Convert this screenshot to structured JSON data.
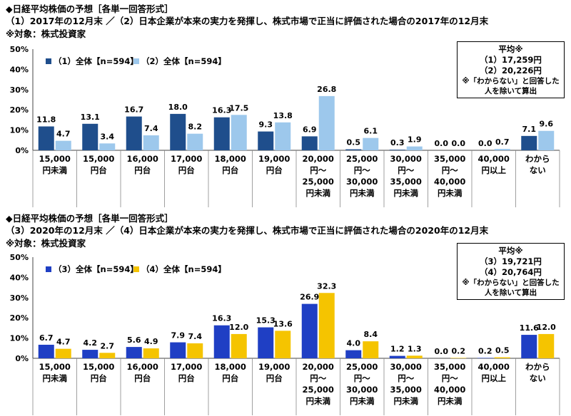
{
  "categories": [
    [
      "15,000",
      "円未満"
    ],
    [
      "15,000",
      "円台"
    ],
    [
      "16,000",
      "円台"
    ],
    [
      "17,000",
      "円台"
    ],
    [
      "18,000",
      "円台"
    ],
    [
      "19,000",
      "円台"
    ],
    [
      "20,000",
      "円～",
      "25,000",
      "円未満"
    ],
    [
      "25,000",
      "円～",
      "30,000",
      "円未満"
    ],
    [
      "30,000",
      "円～",
      "35,000",
      "円未満"
    ],
    [
      "35,000",
      "円～",
      "40,000",
      "円未満"
    ],
    [
      "40,000",
      "円以上"
    ],
    [
      "わから",
      "ない"
    ]
  ],
  "charts": [
    {
      "header": {
        "title": "◆日経平均株価の予想［各単一回答形式］",
        "line2": "（1）2017年の12月末 ／（2）日本企業が本来の実力を発揮し、株式市場で正当に評価された場合の2017年の12月末",
        "line3": "※対象：株式投資家"
      },
      "avg_box": {
        "title": "平均※",
        "line1": "（1）17,259円",
        "line2": "（2）20,226円",
        "note1": "※「わからない」と回答した",
        "note2": "人を除いて算出"
      }
    },
    {
      "header": {
        "title": "◆日経平均株価の予想［各単一回答形式］",
        "line2": "（3）2020年の12月末 ／（4）日本企業が本来の実力を発揮し、株式市場で正当に評価された場合の2020年の12月末",
        "line3": "※対象：株式投資家"
      },
      "avg_box": {
        "title": "平均※",
        "line1": "（3）19,721円",
        "line2": "（4）20,764円",
        "note1": "※「わからない」と回答した",
        "note2": "人を除いて算出"
      }
    }
  ],
  "chart_data": [
    {
      "type": "bar",
      "categories": [
        "15,000円未満",
        "15,000円台",
        "16,000円台",
        "17,000円台",
        "18,000円台",
        "19,000円台",
        "20,000円～25,000円未満",
        "25,000円～30,000円未満",
        "30,000円～35,000円未満",
        "35,000円～40,000円未満",
        "40,000円以上",
        "わからない"
      ],
      "series": [
        {
          "name": "（1）全体【n=594】",
          "color": "#1f4e8c",
          "values": [
            11.8,
            13.1,
            16.7,
            18.0,
            16.3,
            9.3,
            6.9,
            0.5,
            0.3,
            0.0,
            0.0,
            7.1
          ]
        },
        {
          "name": "（2）全体【n=594】",
          "color": "#9dc8ec",
          "values": [
            4.7,
            3.4,
            7.4,
            8.2,
            17.5,
            13.8,
            26.8,
            6.1,
            1.9,
            0.0,
            0.7,
            9.6
          ]
        }
      ],
      "yticks": [
        "0%",
        "10%",
        "20%",
        "30%",
        "40%",
        "50%"
      ],
      "ylim": [
        0,
        50
      ],
      "legend": "top-left"
    },
    {
      "type": "bar",
      "categories": [
        "15,000円未満",
        "15,000円台",
        "16,000円台",
        "17,000円台",
        "18,000円台",
        "19,000円台",
        "20,000円～25,000円未満",
        "25,000円～30,000円未満",
        "30,000円～35,000円未満",
        "35,000円～40,000円未満",
        "40,000円以上",
        "わからない"
      ],
      "series": [
        {
          "name": "（3）全体【n=594】",
          "color": "#1f3fc4",
          "values": [
            6.7,
            4.2,
            5.6,
            7.9,
            16.3,
            15.3,
            26.9,
            4.0,
            1.2,
            0.0,
            0.2,
            11.6
          ]
        },
        {
          "name": "（4）全体【n=594】",
          "color": "#f5c400",
          "values": [
            4.7,
            2.7,
            4.9,
            7.4,
            12.0,
            13.6,
            32.3,
            8.4,
            1.3,
            0.2,
            0.5,
            12.0
          ]
        }
      ],
      "yticks": [
        "0%",
        "10%",
        "20%",
        "30%",
        "40%",
        "50%"
      ],
      "ylim": [
        0,
        50
      ],
      "legend": "top-left"
    }
  ]
}
